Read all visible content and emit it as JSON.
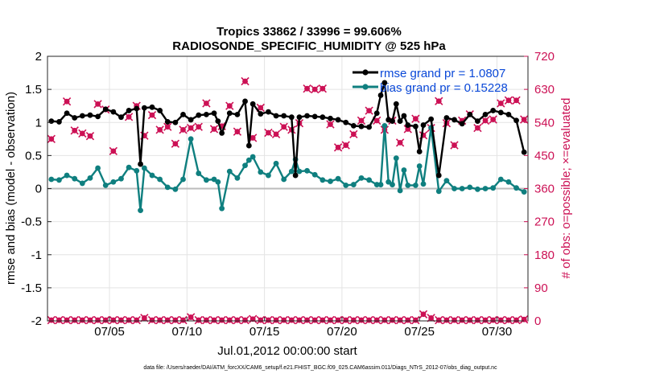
{
  "chart_data": {
    "type": "line",
    "title": "Tropics 33862 / 33996 = 99.606%",
    "subtitle": "RADIOSONDE_SPECIFIC_HUMIDITY @ 525 hPa",
    "xlabel": "Jul.01,2012 00:00:00 start",
    "ylabel": "rmse and bias (model - observation)",
    "ylabel_right": "# of obs: o=possible; ×=evaluated",
    "footer": "data file: /Users/raeder/DAI/ATM_forcXX/CAM6_setup/f.e21.FHIST_BGC.f09_025.CAM6assim.011/Diags_NTrS_2012-07/obs_diag_output.nc",
    "xlim": [
      1,
      32
    ],
    "ylim": [
      -2,
      2
    ],
    "ylim_right": [
      0,
      720
    ],
    "grid": true,
    "x_ticks": [
      5,
      10,
      15,
      20,
      25,
      30
    ],
    "x_tick_labels": [
      "07/05",
      "07/10",
      "07/15",
      "07/20",
      "07/25",
      "07/30"
    ],
    "y_ticks": [
      -2,
      -1.5,
      -1,
      -0.5,
      0,
      0.5,
      1,
      1.5,
      2
    ],
    "y_tick_labels": [
      "-2",
      "-1.5",
      "-1",
      "-0.5",
      "0",
      "0.5",
      "1",
      "1.5",
      "2"
    ],
    "y_ticks_right": [
      0,
      90,
      180,
      270,
      360,
      450,
      540,
      630,
      720
    ],
    "y_tick_labels_right": [
      "0",
      "90",
      "180",
      "270",
      "360",
      "450",
      "540",
      "630",
      "720"
    ],
    "colors": {
      "rmse": "#000000",
      "bias": "#0f7f7f",
      "obs": "#cc1155",
      "zero_line": "#bbbbbb",
      "legend_text": "#0a48d8",
      "grid": "#e4e4e4"
    },
    "legend": {
      "position": "top-right",
      "entries": [
        "rmse grand pr = 1.0807",
        "bias grand pr = 0.15228"
      ]
    },
    "series": [
      {
        "name": "rmse",
        "x": [
          1.25,
          1.75,
          2.25,
          2.75,
          3.25,
          3.75,
          4.25,
          4.75,
          5.25,
          5.75,
          6.25,
          6.75,
          7.0,
          7.25,
          7.75,
          8.25,
          8.75,
          9.25,
          9.75,
          10.25,
          10.75,
          11.25,
          11.75,
          12.0,
          12.25,
          12.75,
          13.25,
          13.75,
          14.0,
          14.25,
          14.75,
          15.25,
          15.75,
          16.25,
          16.75,
          17.0,
          17.25,
          17.75,
          18.25,
          18.75,
          19.25,
          19.75,
          20.25,
          20.75,
          21.25,
          21.75,
          22.25,
          22.5,
          22.75,
          23.0,
          23.25,
          23.5,
          23.75,
          24.0,
          24.25,
          24.75,
          25.0,
          25.25,
          25.75,
          26.25,
          26.75,
          27.25,
          27.75,
          28.25,
          28.75,
          29.25,
          29.75,
          30.25,
          30.75,
          31.25,
          31.75
        ],
        "y": [
          1.02,
          1.01,
          1.14,
          1.07,
          1.1,
          1.11,
          1.09,
          1.2,
          1.16,
          1.08,
          1.18,
          1.21,
          0.37,
          1.22,
          1.23,
          1.18,
          1.01,
          1.0,
          1.12,
          1.04,
          1.11,
          1.12,
          1.14,
          1.02,
          0.84,
          1.14,
          1.12,
          1.32,
          0.65,
          1.28,
          1.13,
          1.16,
          1.1,
          1.1,
          1.08,
          0.2,
          1.08,
          1.1,
          1.09,
          1.08,
          1.06,
          1.04,
          1.0,
          0.95,
          0.94,
          0.93,
          1.14,
          1.41,
          1.6,
          1.04,
          1.02,
          1.28,
          1.02,
          1.1,
          0.96,
          0.94,
          0.56,
          0.96,
          1.05,
          0.2,
          1.07,
          1.04,
          0.98,
          1.12,
          1.02,
          1.12,
          1.18,
          1.15,
          1.12,
          1.03,
          0.55
        ]
      },
      {
        "name": "bias",
        "x": [
          1.25,
          1.75,
          2.25,
          2.75,
          3.25,
          3.75,
          4.25,
          4.75,
          5.25,
          5.75,
          6.25,
          6.75,
          7.0,
          7.25,
          7.75,
          8.25,
          8.75,
          9.25,
          9.75,
          10.25,
          10.75,
          11.25,
          11.75,
          12.0,
          12.25,
          12.75,
          13.25,
          13.75,
          14.0,
          14.25,
          14.75,
          15.25,
          15.75,
          16.25,
          16.75,
          17.0,
          17.25,
          17.75,
          18.25,
          18.75,
          19.25,
          19.75,
          20.25,
          20.75,
          21.25,
          21.75,
          22.25,
          22.5,
          22.75,
          23.0,
          23.25,
          23.5,
          23.75,
          24.0,
          24.25,
          24.75,
          25.0,
          25.25,
          25.75,
          26.25,
          26.75,
          27.25,
          27.75,
          28.25,
          28.75,
          29.25,
          29.75,
          30.25,
          30.75,
          31.25,
          31.75
        ],
        "y": [
          0.14,
          0.13,
          0.2,
          0.15,
          0.08,
          0.16,
          0.31,
          0.05,
          0.1,
          0.15,
          0.32,
          0.27,
          -0.33,
          0.31,
          0.2,
          0.14,
          0.02,
          -0.01,
          0.14,
          0.75,
          0.23,
          0.13,
          0.14,
          0.1,
          -0.3,
          0.26,
          0.16,
          0.35,
          0.43,
          0.48,
          0.25,
          0.2,
          0.38,
          0.14,
          0.26,
          0.44,
          0.26,
          0.27,
          0.21,
          0.13,
          0.11,
          0.15,
          0.05,
          0.06,
          0.16,
          0.13,
          0.06,
          0.06,
          0.95,
          0.1,
          0.06,
          0.46,
          -0.03,
          0.28,
          0.05,
          0.05,
          0.34,
          0.07,
          0.92,
          -0.04,
          0.12,
          0.0,
          0.0,
          0.02,
          -0.01,
          0.0,
          0.01,
          0.14,
          0.1,
          0.01,
          -0.05
        ]
      },
      {
        "name": "obs possible",
        "axis": "right",
        "x": [
          1.25,
          2.25,
          2.75,
          3.25,
          3.75,
          4.25,
          4.75,
          5.25,
          6.25,
          6.75,
          7.25,
          7.75,
          8.25,
          8.75,
          9.25,
          9.75,
          10.25,
          10.75,
          11.25,
          11.75,
          12.25,
          12.75,
          13.25,
          13.75,
          14.25,
          14.75,
          15.25,
          15.75,
          16.25,
          16.75,
          17.25,
          17.75,
          18.25,
          18.75,
          19.25,
          19.75,
          20.25,
          20.75,
          21.25,
          21.75,
          22.25,
          22.75,
          23.25,
          23.75,
          24.25,
          24.75,
          25.25,
          25.75,
          26.25,
          26.75,
          27.25,
          27.75,
          28.25,
          28.75,
          29.25,
          29.75,
          30.25,
          30.75,
          31.25,
          31.75
        ],
        "y": [
          495,
          597,
          518,
          510,
          503,
          590,
          575,
          462,
          555,
          585,
          504,
          560,
          520,
          528,
          482,
          520,
          525,
          528,
          592,
          522,
          530,
          585,
          515,
          652,
          498,
          580,
          512,
          508,
          528,
          520,
          538,
          632,
          630,
          632,
          535,
          472,
          478,
          508,
          545,
          572,
          545,
          520,
          545,
          485,
          522,
          550,
          505,
          525,
          598,
          538,
          478,
          545,
          562,
          525,
          545,
          548,
          592,
          600,
          600,
          548
        ]
      },
      {
        "name": "obs evaluated",
        "axis": "right",
        "x": [
          1.25,
          2.25,
          2.75,
          3.25,
          3.75,
          4.25,
          4.75,
          5.25,
          6.25,
          6.75,
          7.25,
          7.75,
          8.25,
          8.75,
          9.25,
          9.75,
          10.25,
          10.75,
          11.25,
          11.75,
          12.25,
          12.75,
          13.25,
          13.75,
          14.25,
          14.75,
          15.25,
          15.75,
          16.25,
          16.75,
          17.25,
          17.75,
          18.25,
          18.75,
          19.25,
          19.75,
          20.25,
          20.75,
          21.25,
          21.75,
          22.25,
          22.75,
          23.25,
          23.75,
          24.25,
          24.75,
          25.25,
          25.75,
          26.25,
          26.75,
          27.25,
          27.75,
          28.25,
          28.75,
          29.25,
          29.75,
          30.25,
          30.75,
          31.25,
          31.75
        ],
        "y": [
          495,
          597,
          518,
          510,
          503,
          590,
          575,
          462,
          555,
          585,
          504,
          560,
          520,
          528,
          482,
          520,
          525,
          528,
          592,
          522,
          530,
          585,
          515,
          652,
          498,
          580,
          512,
          508,
          528,
          520,
          538,
          632,
          630,
          632,
          535,
          472,
          478,
          508,
          545,
          572,
          545,
          520,
          545,
          485,
          522,
          550,
          505,
          525,
          598,
          538,
          478,
          545,
          562,
          525,
          545,
          548,
          592,
          600,
          600,
          548
        ]
      },
      {
        "name": "bottom obs possible",
        "axis": "right",
        "x": [
          1.25,
          1.75,
          2.25,
          2.75,
          3.25,
          3.75,
          4.25,
          4.75,
          5.25,
          5.75,
          6.25,
          6.75,
          7.25,
          7.75,
          8.25,
          8.75,
          9.25,
          9.75,
          10.25,
          10.75,
          11.25,
          11.75,
          12.25,
          12.75,
          13.25,
          13.75,
          14.25,
          14.75,
          15.25,
          15.75,
          16.25,
          16.75,
          17.25,
          17.75,
          18.25,
          18.75,
          19.25,
          19.75,
          20.25,
          20.75,
          21.25,
          21.75,
          22.25,
          22.75,
          23.25,
          23.75,
          24.25,
          24.75,
          25.25,
          25.75,
          26.25,
          26.75,
          27.25,
          27.75,
          28.25,
          28.75,
          29.25,
          29.75,
          30.25,
          30.75,
          31.25,
          31.75
        ],
        "y": [
          2,
          2,
          2,
          2,
          2,
          2,
          2,
          2,
          2,
          2,
          2,
          2,
          8,
          2,
          2,
          2,
          2,
          2,
          10,
          2,
          2,
          2,
          2,
          2,
          2,
          2,
          5,
          2,
          2,
          2,
          2,
          2,
          2,
          2,
          2,
          2,
          2,
          2,
          2,
          2,
          2,
          2,
          2,
          2,
          2,
          2,
          2,
          2,
          18,
          8,
          2,
          2,
          2,
          2,
          2,
          2,
          2,
          2,
          2,
          2,
          2,
          4
        ]
      }
    ]
  }
}
